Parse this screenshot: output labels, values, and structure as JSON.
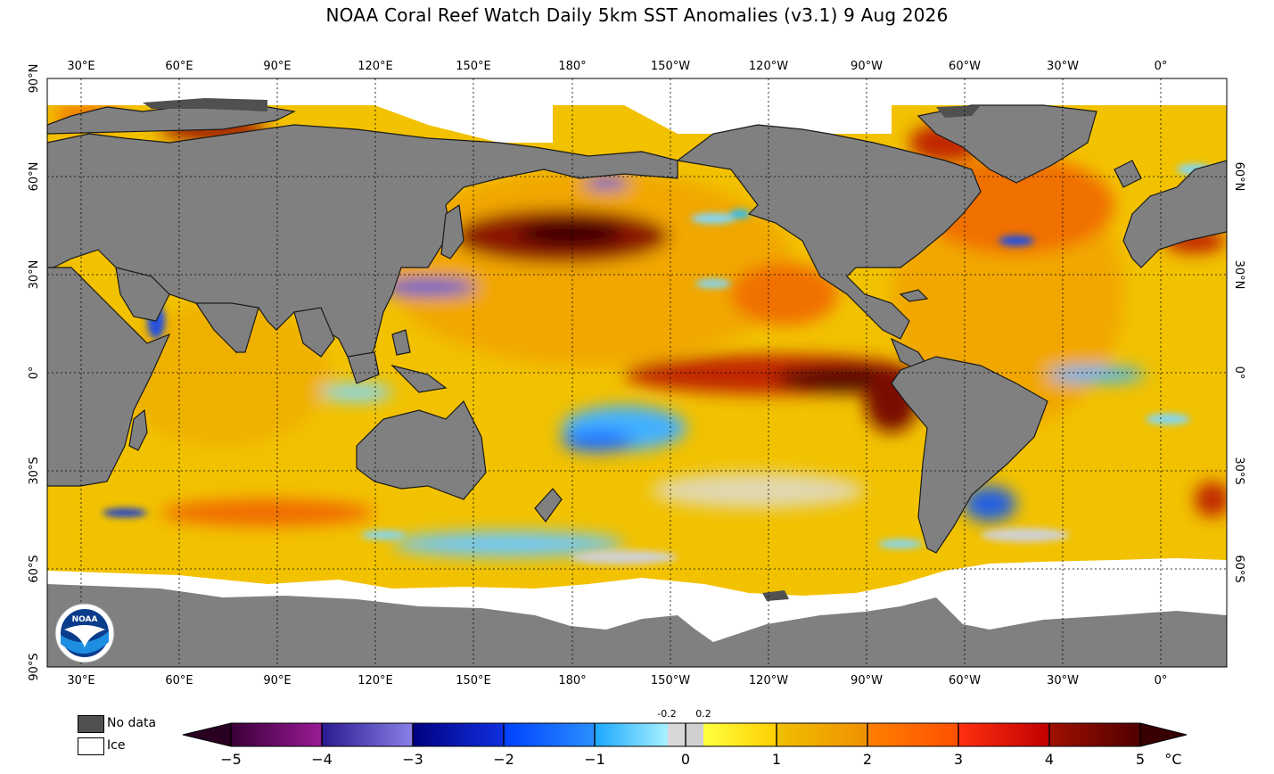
{
  "title": "NOAA Coral Reef Watch Daily 5km SST Anomalies  (v3.1)   9 Aug 2026",
  "map": {
    "lon_labels": [
      "30°E",
      "60°E",
      "90°E",
      "120°E",
      "150°E",
      "180°",
      "150°W",
      "120°W",
      "90°W",
      "60°W",
      "30°W",
      "0°"
    ],
    "lat_labels_left": [
      "90°N",
      "60°N",
      "30°N",
      "0°",
      "30°S",
      "60°S",
      "90°S"
    ],
    "lat_labels_right": [
      "60°N",
      "30°N",
      "0°",
      "30°S",
      "60°S"
    ],
    "colors": {
      "land": "#808080",
      "no_data": "#505050",
      "ice": "#ffffff",
      "ocean_base": "#f2c200"
    }
  },
  "legend": {
    "no_data_label": "No data",
    "ice_label": "Ice",
    "no_data_color": "#505050",
    "ice_color": "#ffffff"
  },
  "colorbar": {
    "ticks": [
      "−5",
      "−4",
      "−3",
      "−2",
      "−1",
      "0",
      "1",
      "2",
      "3",
      "4",
      "5"
    ],
    "neutral_low": "-0.2",
    "neutral_high": "0.2",
    "unit": "°C"
  },
  "logo_text": "NOAA"
}
